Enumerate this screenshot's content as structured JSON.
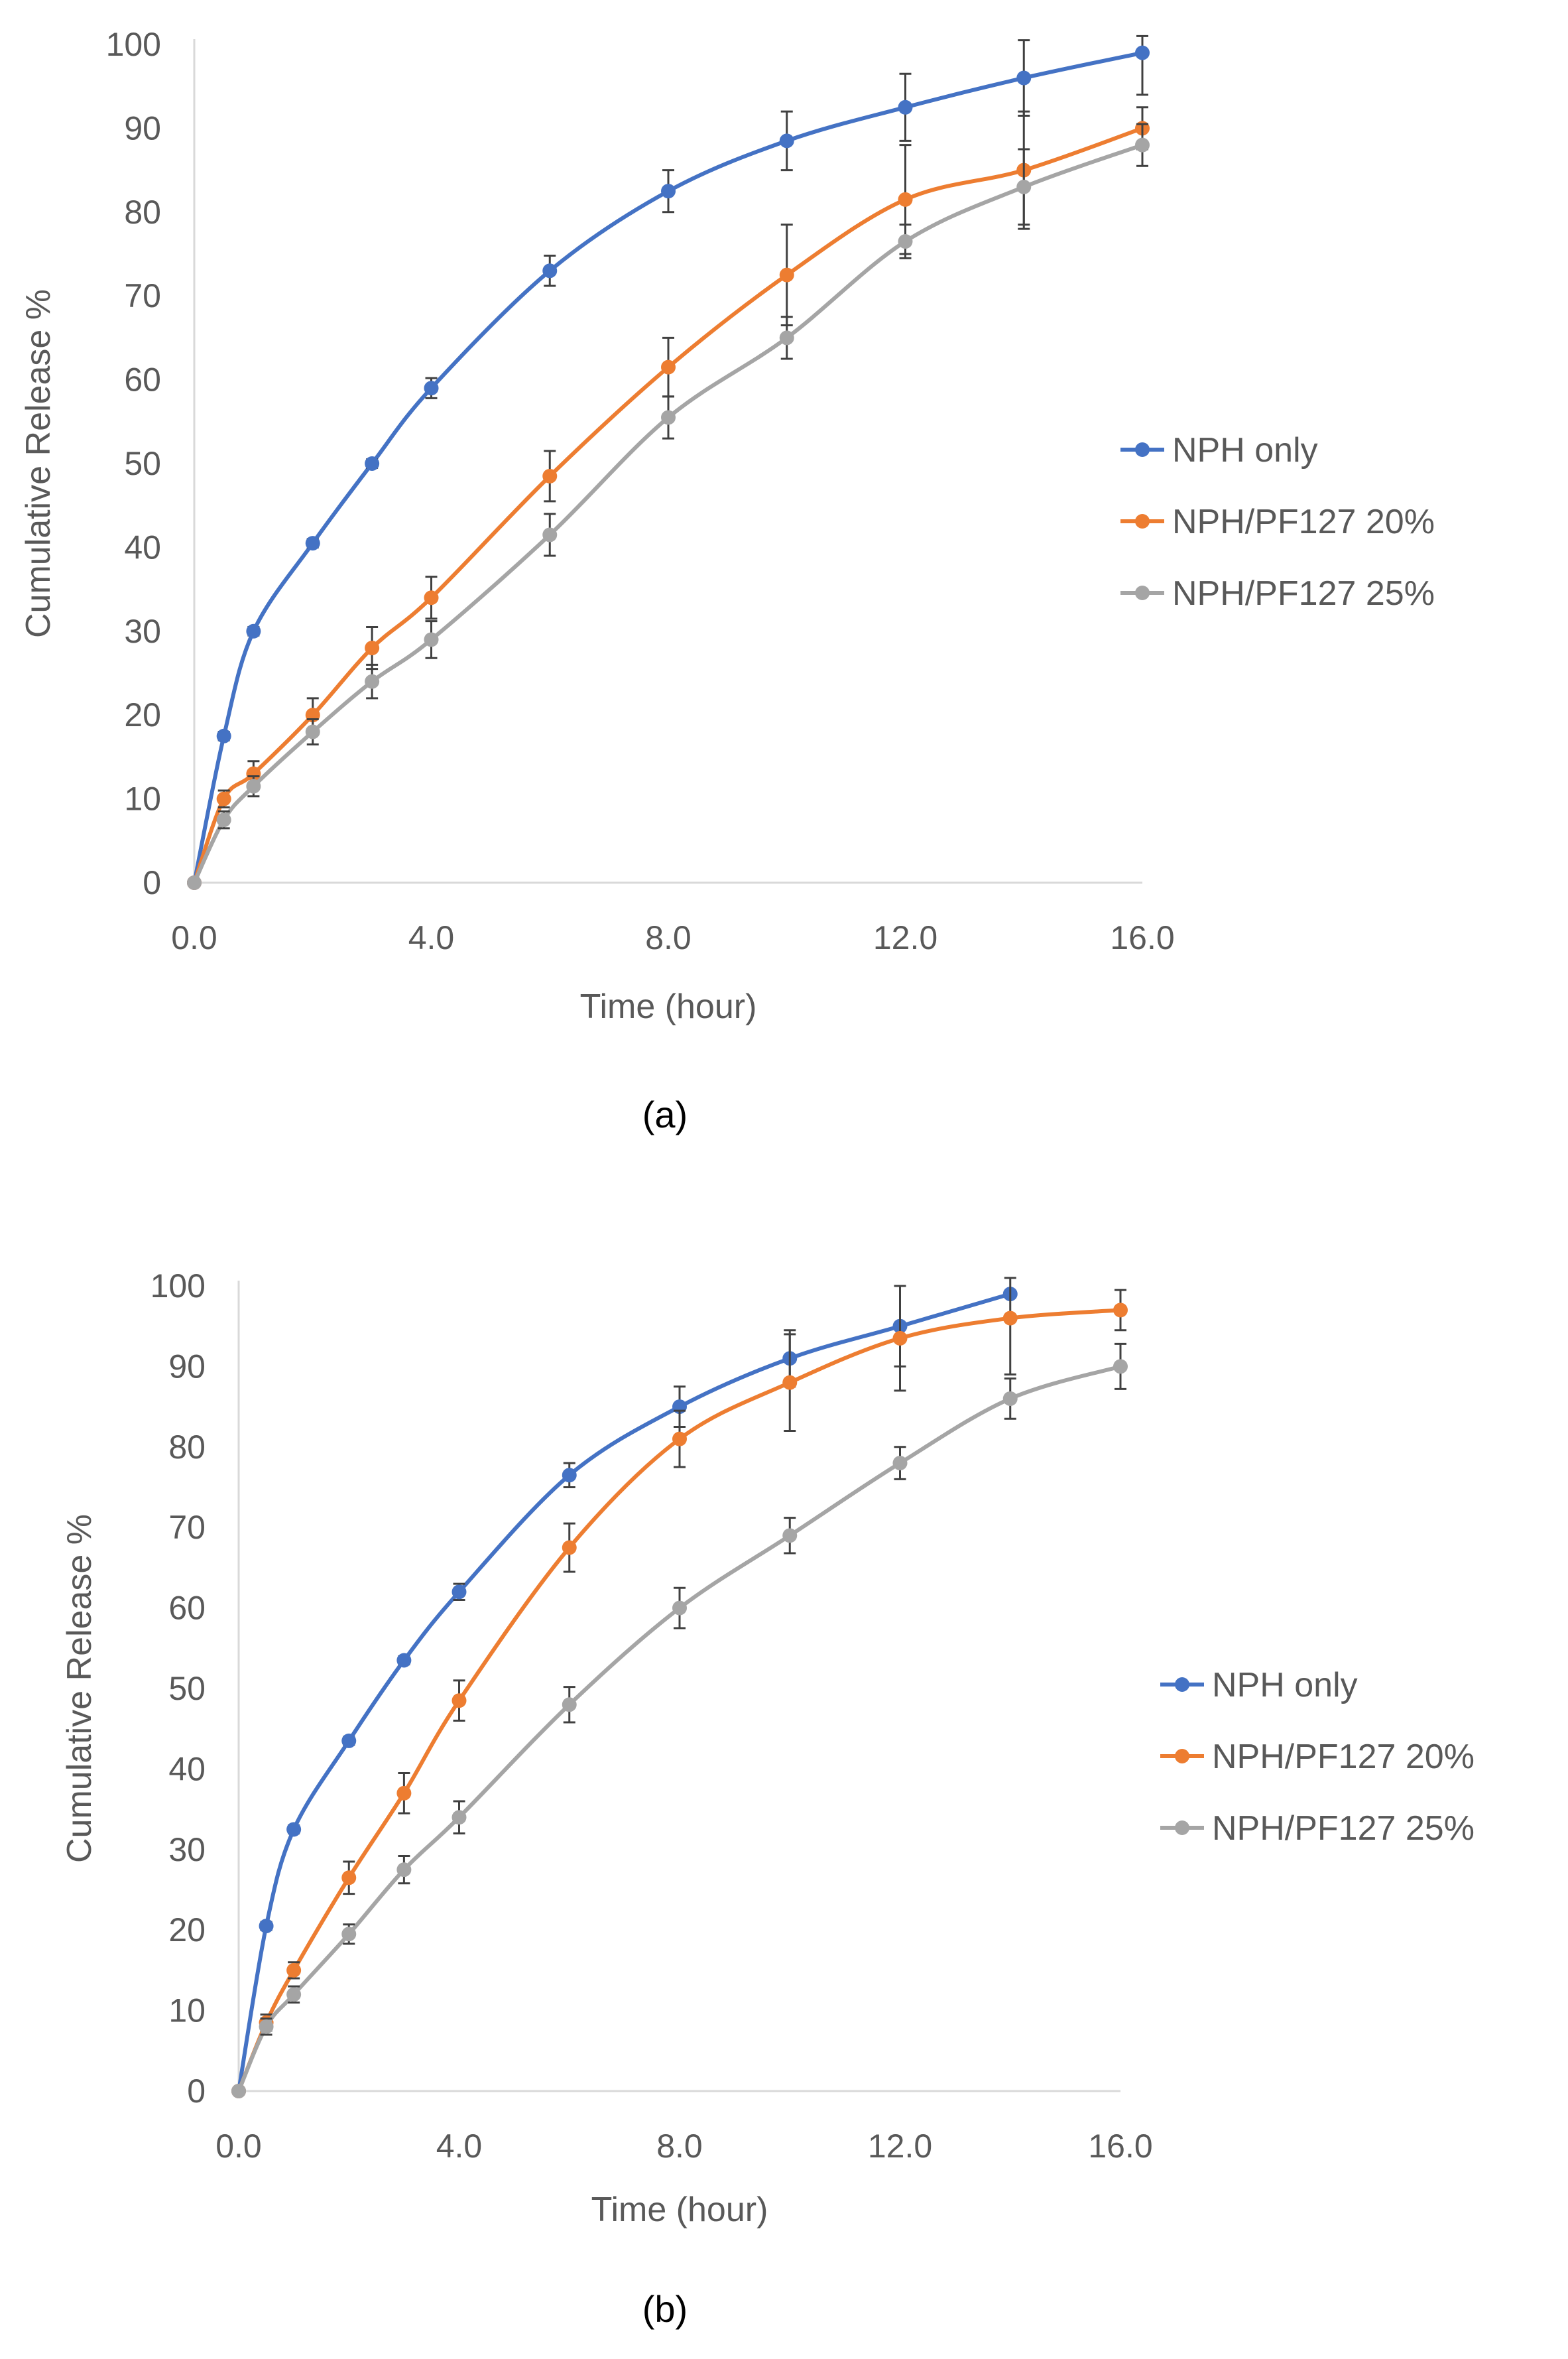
{
  "chart_data": [
    {
      "type": "line",
      "panel_label": "(a)",
      "xlabel": "Time (hour)",
      "ylabel": "Cumulative Release %",
      "xlim": [
        0,
        16
      ],
      "ylim": [
        0,
        100
      ],
      "x_ticks": [
        "0.0",
        "4.0",
        "8.0",
        "12.0",
        "16.0"
      ],
      "y_ticks": [
        "0",
        "10",
        "20",
        "30",
        "40",
        "50",
        "60",
        "70",
        "80",
        "90",
        "100"
      ],
      "grid": false,
      "legend_position": "right",
      "x": [
        0,
        0.5,
        1,
        2,
        3,
        4,
        6,
        8,
        10,
        12,
        14,
        16
      ],
      "series": [
        {
          "name": "NPH only",
          "color": "#4472C4",
          "values": [
            0,
            17.5,
            30,
            40.5,
            50,
            59,
            73,
            82.5,
            88.5,
            92.5,
            96,
            99
          ],
          "errors": [
            0,
            0.5,
            0.5,
            0.5,
            0.5,
            1.2,
            1.8,
            2.5,
            3.5,
            4,
            4.5,
            5
          ]
        },
        {
          "name": "NPH/PF127 20%",
          "color": "#ED7D31",
          "values": [
            0,
            10,
            13,
            20,
            28,
            34,
            48.5,
            61.5,
            72.5,
            81.5,
            85,
            90
          ],
          "errors": [
            0,
            1,
            1.5,
            2,
            2.5,
            2.5,
            3,
            3.5,
            6,
            6.5,
            7,
            2.5
          ]
        },
        {
          "name": "NPH/PF127 25%",
          "color": "#A5A5A5",
          "values": [
            0,
            7.5,
            11.5,
            18,
            24,
            29,
            41.5,
            55.5,
            65,
            76.5,
            83,
            88
          ],
          "errors": [
            0,
            1,
            1.2,
            1.5,
            2,
            2.2,
            2.5,
            2.5,
            2.5,
            2,
            4.5,
            2.5
          ]
        }
      ]
    },
    {
      "type": "line",
      "panel_label": "(b)",
      "xlabel": "Time (hour)",
      "ylabel": "Cumulative Release %",
      "xlim": [
        0,
        16
      ],
      "ylim": [
        0,
        100
      ],
      "x_ticks": [
        "0.0",
        "4.0",
        "8.0",
        "12.0",
        "16.0"
      ],
      "y_ticks": [
        "0",
        "10",
        "20",
        "30",
        "40",
        "50",
        "60",
        "70",
        "80",
        "90",
        "100"
      ],
      "grid": false,
      "legend_position": "right",
      "x": [
        0,
        0.5,
        1,
        2,
        3,
        4,
        6,
        8,
        10,
        12,
        14,
        16
      ],
      "series": [
        {
          "name": "NPH only",
          "color": "#4472C4",
          "values": [
            0,
            20.5,
            32.5,
            43.5,
            53.5,
            62,
            76.5,
            85,
            91,
            95,
            99,
            null
          ],
          "errors": [
            0,
            0.5,
            0.5,
            0.5,
            0.5,
            1,
            1.5,
            2.5,
            3.5,
            5,
            0,
            null
          ]
        },
        {
          "name": "NPH/PF127 20%",
          "color": "#ED7D31",
          "values": [
            0,
            8.5,
            15,
            26.5,
            37,
            48.5,
            67.5,
            81,
            88,
            93.5,
            96,
            97
          ],
          "errors": [
            0,
            1,
            1,
            2,
            2.5,
            2.5,
            3,
            3.5,
            6,
            6.5,
            7,
            2.5
          ]
        },
        {
          "name": "NPH/PF127 25%",
          "color": "#A5A5A5",
          "values": [
            0,
            8,
            12,
            19.5,
            27.5,
            34,
            48,
            60,
            69,
            78,
            86,
            90
          ],
          "errors": [
            0,
            1,
            1,
            1.2,
            1.7,
            2,
            2.2,
            2.5,
            2.2,
            2,
            2.5,
            2.8
          ]
        }
      ]
    }
  ]
}
